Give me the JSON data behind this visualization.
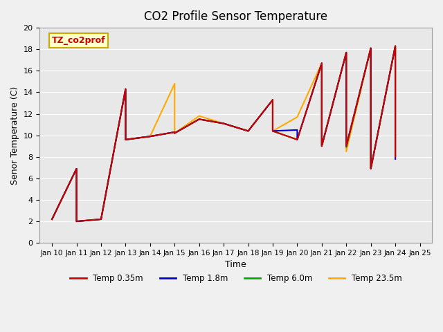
{
  "title": "CO2 Profile Sensor Temperature",
  "xlabel": "Time",
  "ylabel": "Senor Temperature (C)",
  "ylim": [
    0,
    20
  ],
  "yticks": [
    0,
    2,
    4,
    6,
    8,
    10,
    12,
    14,
    16,
    18,
    20
  ],
  "plot_bg_color": "#e8e8e8",
  "fig_bg_color": "#f0f0f0",
  "legend_label": "TZ_co2prof",
  "legend_box_color": "#ffffcc",
  "legend_text_color": "#cc0000",
  "legend_box_edge_color": "#ccaa00",
  "series": {
    "Temp 0.35m": {
      "color": "#cc0000",
      "x": [
        10,
        11,
        11,
        12,
        13,
        13,
        14,
        15,
        15,
        16,
        17,
        18,
        19,
        19,
        20,
        21,
        21,
        22,
        22,
        23,
        23,
        24,
        24
      ],
      "y": [
        2.2,
        6.9,
        2.0,
        2.2,
        14.3,
        9.6,
        9.9,
        10.3,
        10.2,
        11.5,
        11.1,
        10.4,
        13.3,
        10.4,
        9.6,
        16.7,
        9.0,
        17.7,
        9.0,
        18.1,
        6.9,
        18.3,
        8.0
      ]
    },
    "Temp 1.8m": {
      "color": "#0000cc",
      "x": [
        10,
        11,
        11,
        12,
        13,
        13,
        14,
        15,
        15,
        16,
        17,
        18,
        19,
        19,
        20,
        20,
        21,
        21,
        22,
        22,
        23,
        23,
        24,
        24
      ],
      "y": [
        2.2,
        6.9,
        2.0,
        2.2,
        14.3,
        9.6,
        9.9,
        10.3,
        10.2,
        11.5,
        11.1,
        10.4,
        13.3,
        10.4,
        10.5,
        9.6,
        16.7,
        9.0,
        17.7,
        9.0,
        18.1,
        6.9,
        18.3,
        7.8
      ]
    },
    "Temp 6.0m": {
      "color": "#00aa00",
      "x": [
        10,
        11,
        11,
        12,
        13,
        13,
        14,
        15,
        15,
        16,
        17,
        18,
        19,
        19,
        20,
        21,
        21,
        22,
        22,
        23,
        23,
        24,
        24
      ],
      "y": [
        2.2,
        6.9,
        2.0,
        2.2,
        14.3,
        9.6,
        9.9,
        10.3,
        10.2,
        11.5,
        11.1,
        10.4,
        13.3,
        10.4,
        9.6,
        16.7,
        9.0,
        17.7,
        8.9,
        18.1,
        6.9,
        18.3,
        8.0
      ]
    },
    "Temp 23.5m": {
      "color": "#ffaa00",
      "x": [
        10,
        11,
        11,
        12,
        13,
        13,
        14,
        15,
        15,
        16,
        17,
        18,
        19,
        19,
        20,
        21,
        21,
        22,
        22,
        23,
        23,
        24,
        24
      ],
      "y": [
        2.2,
        6.9,
        2.0,
        2.2,
        14.3,
        9.6,
        9.9,
        14.8,
        10.2,
        11.8,
        11.1,
        10.4,
        13.3,
        10.4,
        11.7,
        16.7,
        9.0,
        17.7,
        8.5,
        18.1,
        6.9,
        18.3,
        8.0
      ]
    }
  },
  "xtick_labels": [
    "Jan 10",
    "Jan 11",
    "Jan 12",
    "Jan 13",
    "Jan 14",
    "Jan 15",
    "Jan 16",
    "Jan 17",
    "Jan 18",
    "Jan 19",
    "Jan 20",
    "Jan 21",
    "Jan 22",
    "Jan 23",
    "Jan 24",
    "Jan 25"
  ],
  "xtick_positions": [
    10,
    11,
    12,
    13,
    14,
    15,
    16,
    17,
    18,
    19,
    20,
    21,
    22,
    23,
    24,
    25
  ],
  "series_order": [
    "Temp 23.5m",
    "Temp 6.0m",
    "Temp 1.8m",
    "Temp 0.35m"
  ],
  "legend_order": [
    "Temp 0.35m",
    "Temp 1.8m",
    "Temp 6.0m",
    "Temp 23.5m"
  ]
}
